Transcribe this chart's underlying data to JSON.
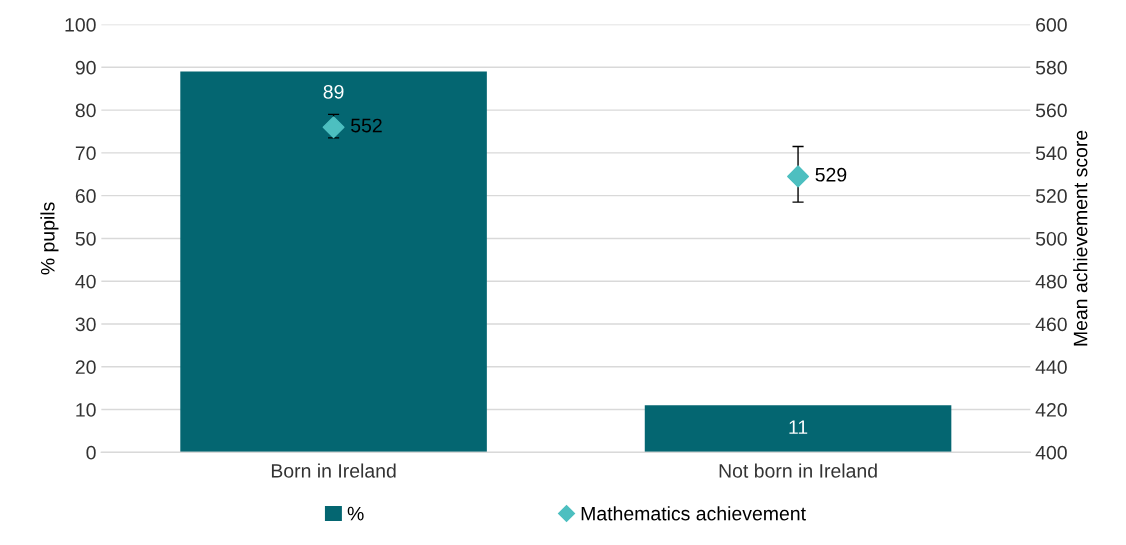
{
  "chart_data": {
    "type": "bar",
    "categories": [
      "Born in Ireland",
      "Not born in Ireland"
    ],
    "ylabel": "% pupils",
    "y2label": "Mean achievement score",
    "ylim": [
      0,
      100
    ],
    "yticks": [
      0,
      10,
      20,
      30,
      40,
      50,
      60,
      70,
      80,
      90,
      100
    ],
    "y2lim": [
      400,
      600
    ],
    "y2ticks": [
      400,
      420,
      440,
      460,
      480,
      500,
      520,
      540,
      560,
      580,
      600
    ],
    "grid": "y",
    "legend": "bottom",
    "data_labels": true,
    "series": [
      {
        "name": "%",
        "color": "#046671",
        "values": [
          89,
          11
        ]
      },
      {
        "name": "Mathematics achievement",
        "type": "scatter",
        "axis": "y2",
        "color": "#4dbfc0",
        "marker": "diamond",
        "x": [
          "Born in Ireland",
          "Not born in Ireland"
        ],
        "values": [
          552,
          529
        ],
        "errors": [
          [
            547,
            558
          ],
          [
            517,
            543
          ]
        ]
      }
    ]
  }
}
